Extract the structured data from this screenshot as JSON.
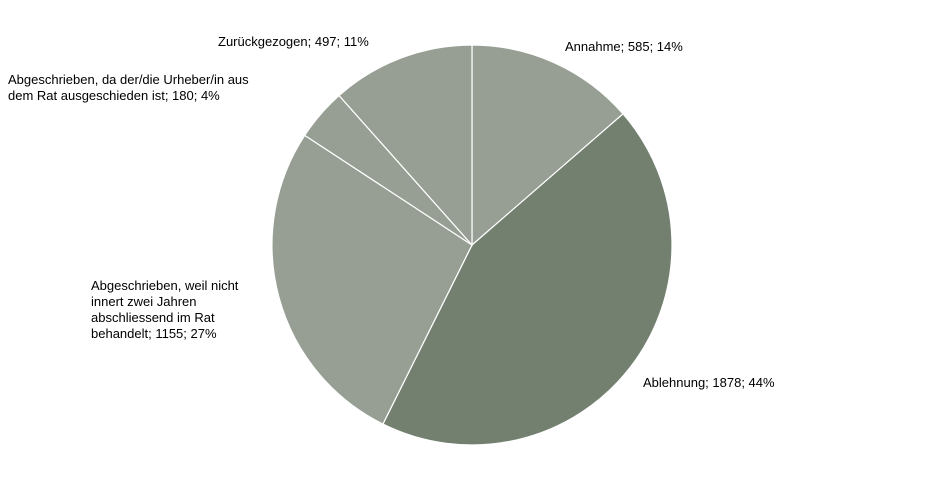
{
  "chart_data": {
    "type": "pie",
    "title": "",
    "start_angle_deg": 0,
    "direction": "clockwise",
    "slices": [
      {
        "key": "annahme",
        "label": "Annahme",
        "value": 585,
        "percent": "14%",
        "color": "#979f94"
      },
      {
        "key": "ablehnung",
        "label": "Ablehnung",
        "value": 1878,
        "percent": "44%",
        "color": "#738070"
      },
      {
        "key": "abgeschrieben-frist",
        "label": "Abgeschrieben, weil nicht innert zwei Jahren abschliessend im Rat behandelt",
        "value": 1155,
        "percent": "27%",
        "color": "#979f94"
      },
      {
        "key": "abgeschrieben-ausgeschieden",
        "label": "Abgeschrieben, da der/die Urheber/in aus dem Rat ausgeschieden ist",
        "value": 180,
        "percent": "4%",
        "color": "#979f94"
      },
      {
        "key": "zurueckgezogen",
        "label": "Zurückgezogen",
        "value": 497,
        "percent": "11%",
        "color": "#979f94"
      }
    ],
    "labels": {
      "annahme": [
        "Annahme; 585; 14%"
      ],
      "ablehnung": [
        "Ablehnung; 1878; 44%"
      ],
      "abgeschrieben-frist": [
        "Abgeschrieben, weil nicht",
        "innert zwei Jahren",
        "abschliessend im Rat",
        "behandelt; 1155; 27%"
      ],
      "abgeschrieben-ausgeschieden": [
        "Abgeschrieben, da der/die Urheber/in aus",
        "dem Rat ausgeschieden ist; 180; 4%"
      ],
      "zurueckgezogen": [
        "Zurückgezogen; 497; 11%"
      ]
    }
  }
}
